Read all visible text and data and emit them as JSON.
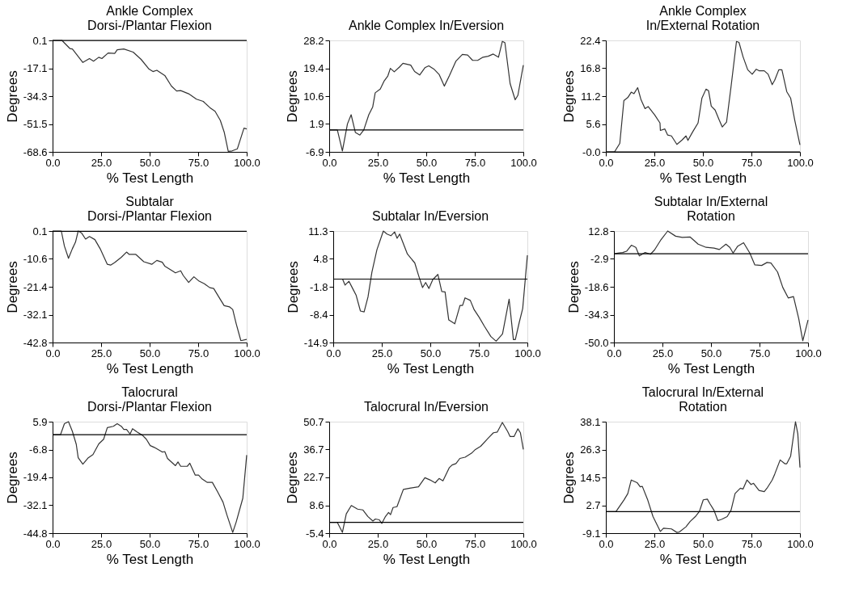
{
  "chart_data": [
    {
      "type": "line",
      "title": "Ankle Complex\nDorsi-/Plantar Flexion",
      "xlabel": "% Test Length",
      "ylabel": "Degrees",
      "xlim": [
        0,
        100
      ],
      "ylim": [
        -68.6,
        0.1
      ],
      "xticks": [
        {
          "value": 0,
          "label": "0.0"
        },
        {
          "value": 25,
          "label": "25.0"
        },
        {
          "value": 50,
          "label": "50.0"
        },
        {
          "value": 75,
          "label": "75.0"
        },
        {
          "value": 100,
          "label": "100.0"
        }
      ],
      "yticks": [
        -68.6,
        -51.5,
        -34.3,
        -17.1,
        0.1
      ],
      "grid": false,
      "ref_lines": [
        {
          "axis": "y",
          "value": 0,
          "color": "#000000"
        }
      ],
      "x": [
        0,
        4.8,
        8.9,
        10.2,
        15.6,
        19,
        21.1,
        23.8,
        25.4,
        28.6,
        32,
        33.3,
        36.7,
        41.5,
        45.6,
        49.7,
        51.7,
        53.7,
        57.8,
        61.2,
        63.9,
        66,
        70.1,
        74.1,
        77.6,
        81,
        83.7,
        86.4,
        88.4,
        90.5,
        92.5,
        95.2,
        98.6,
        100
      ],
      "series": [
        {
          "color": "#333333",
          "values": [
            0.1,
            0.1,
            -4.9,
            -5.2,
            -13.5,
            -11.1,
            -12.7,
            -10.3,
            -11.1,
            -7.7,
            -7.9,
            -5.7,
            -5.2,
            -7.1,
            -11.6,
            -17.6,
            -19.1,
            -18.3,
            -21.5,
            -28.0,
            -31.1,
            -30.8,
            -32.8,
            -36.1,
            -37.5,
            -41.3,
            -43.6,
            -49.2,
            -56.4,
            -68.3,
            -68.0,
            -66.7,
            -54,
            -54.5
          ]
        }
      ]
    },
    {
      "type": "line",
      "title": "Ankle Complex In/Eversion",
      "xlabel": "% Test Length",
      "ylabel": "Degrees",
      "xlim": [
        0,
        100
      ],
      "ylim": [
        -6.9,
        28.2
      ],
      "xticks": [
        {
          "value": 0,
          "label": "0.0"
        },
        {
          "value": 25,
          "label": "25.0"
        },
        {
          "value": 50,
          "label": "50.0"
        },
        {
          "value": 75,
          "label": "75.0"
        },
        {
          "value": 100,
          "label": "100.0"
        }
      ],
      "yticks": [
        -6.9,
        1.9,
        10.6,
        19.4,
        28.2
      ],
      "grid": false,
      "ref_lines": [
        {
          "axis": "y",
          "value": 0,
          "color": "#000000"
        }
      ],
      "x": [
        0,
        4.2,
        6.8,
        9.4,
        11.3,
        13.5,
        15.8,
        17.8,
        20.4,
        22.4,
        23.7,
        26.3,
        28.2,
        30.2,
        31.5,
        33.5,
        36.2,
        38,
        42,
        44,
        46.6,
        49.3,
        51.3,
        53.9,
        56.6,
        59.3,
        61.9,
        65.3,
        68.6,
        71.3,
        73.9,
        76.5,
        79.2,
        81.9,
        84.5,
        87.2,
        89.2,
        90.5,
        93.2,
        95.8,
        97.2,
        100
      ],
      "series": [
        {
          "color": "#333333",
          "values": [
            0.0,
            0.0,
            -6.6,
            1.9,
            4.8,
            -0.8,
            -1.6,
            0.0,
            4.8,
            7.2,
            11.7,
            12.9,
            15.3,
            17.0,
            19.4,
            18.3,
            19.8,
            21.0,
            20.4,
            18.4,
            17.3,
            19.6,
            20.2,
            19.2,
            17.5,
            13.8,
            17.1,
            21.7,
            23.8,
            23.6,
            21.9,
            21.9,
            22.9,
            23.2,
            23.9,
            22.9,
            27.9,
            27.5,
            14.6,
            9.5,
            10.9,
            20.4
          ]
        }
      ]
    },
    {
      "type": "line",
      "title": "Ankle Complex\nIn/External Rotation",
      "xlabel": "% Test Length",
      "ylabel": "Degrees",
      "xlim": [
        0,
        100
      ],
      "ylim": [
        0,
        22.4
      ],
      "xticks": [
        {
          "value": 0,
          "label": "0.0"
        },
        {
          "value": 25,
          "label": "25.0"
        },
        {
          "value": 50,
          "label": "50.0"
        },
        {
          "value": 75,
          "label": "75.0"
        },
        {
          "value": 100,
          "label": "100.0"
        }
      ],
      "yticks": [
        {
          "value": 0,
          "label": "-0.0"
        },
        5.6,
        11.2,
        16.8,
        22.4
      ],
      "grid": false,
      "ref_lines": [
        {
          "axis": "y",
          "value": 0,
          "color": "#000000"
        }
      ],
      "x": [
        0,
        4.5,
        7.2,
        9.3,
        11.3,
        13.1,
        14.5,
        16.4,
        18.1,
        20.2,
        21.8,
        25.2,
        27.9,
        28.1,
        30.4,
        31.8,
        33.8,
        36.6,
        39.3,
        41.3,
        42.3,
        44.7,
        47.5,
        49.5,
        51.6,
        52.9,
        54.3,
        56.3,
        58.4,
        60,
        62.2,
        64.5,
        67.3,
        68.6,
        70.7,
        73.1,
        75.4,
        77.5,
        78.9,
        81.6,
        83.6,
        85.7,
        87,
        89.1,
        90.7,
        93.2,
        95.2,
        97.3,
        100
      ],
      "series": [
        {
          "color": "#333333",
          "values": [
            0,
            0,
            1.7,
            10.3,
            10.9,
            12.0,
            11.7,
            12.9,
            10.5,
            8.7,
            9.1,
            7.4,
            5.8,
            4.3,
            4.6,
            3.4,
            3.2,
            1.5,
            2.4,
            3.2,
            2.3,
            4.0,
            5.8,
            10.8,
            12.6,
            12.3,
            9.2,
            8.4,
            6.4,
            5.0,
            6.0,
            13.1,
            22.2,
            22.0,
            19.1,
            16.5,
            15.6,
            16.6,
            16.3,
            16.3,
            15.6,
            13.5,
            14.4,
            16.5,
            16.5,
            12.1,
            10.8,
            6.4,
            1.4
          ]
        }
      ]
    },
    {
      "type": "line",
      "title": "Subtalar\nDorsi-/Plantar Flexion",
      "xlabel": "% Test Length",
      "ylabel": "Degrees",
      "xlim": [
        0,
        100
      ],
      "ylim": [
        -42.8,
        0.1
      ],
      "xticks": [
        {
          "value": 0,
          "label": "0.0"
        },
        {
          "value": 25,
          "label": "25.0"
        },
        {
          "value": 50,
          "label": "50.0"
        },
        {
          "value": 75,
          "label": "75.0"
        },
        {
          "value": 100,
          "label": "100.0"
        }
      ],
      "yticks": [
        -42.8,
        -32.1,
        -21.4,
        -10.6,
        0.1
      ],
      "grid": false,
      "ref_lines": [
        {
          "axis": "y",
          "value": 0,
          "color": "#000000"
        }
      ],
      "x": [
        0,
        4.5,
        6.1,
        8.2,
        10.2,
        11.8,
        13.2,
        15,
        17,
        19,
        21.8,
        24.5,
        28.2,
        29.9,
        32,
        35.4,
        38.1,
        39.5,
        42.9,
        47,
        51.1,
        53.7,
        56.5,
        57.8,
        60.5,
        63.3,
        66,
        67.3,
        70.1,
        72.8,
        75.5,
        78.2,
        81,
        83,
        86.4,
        88.4,
        91.2,
        92.8,
        94.6,
        97,
        100
      ],
      "series": [
        {
          "color": "#333333",
          "values": [
            0.1,
            0.1,
            -5.7,
            -10.4,
            -6.7,
            -4.2,
            0.1,
            -0.7,
            -3.0,
            -2.0,
            -3.2,
            -6.7,
            -12.7,
            -13.0,
            -12.0,
            -10.0,
            -8.0,
            -8.9,
            -8.9,
            -11.7,
            -12.7,
            -11.2,
            -11.9,
            -13.4,
            -14.7,
            -16.0,
            -15.2,
            -17.0,
            -19.7,
            -17.5,
            -19.2,
            -20.2,
            -21.7,
            -22.0,
            -26.2,
            -28.6,
            -29.1,
            -30.1,
            -35.6,
            -42.1,
            -41.6
          ]
        }
      ]
    },
    {
      "type": "line",
      "title": "Subtalar In/Eversion",
      "xlabel": "% Test Length",
      "ylabel": "Degrees",
      "xlim": [
        0,
        100
      ],
      "ylim": [
        -14.9,
        11.3
      ],
      "xticks": [
        {
          "value": 0,
          "label": "0.0"
        },
        {
          "value": 25,
          "label": "25.0"
        },
        {
          "value": 50,
          "label": "50.0"
        },
        {
          "value": 75,
          "label": "75.0"
        },
        {
          "value": 100,
          "label": "100.0"
        }
      ],
      "yticks": [
        -14.9,
        -8.4,
        -1.8,
        4.8,
        11.3
      ],
      "grid": false,
      "ref_lines": [
        {
          "axis": "y",
          "value": 0,
          "color": "#000000"
        }
      ],
      "x": [
        0,
        4.8,
        6.1,
        8.1,
        10.1,
        11.8,
        14,
        15.9,
        17.9,
        19.9,
        22.5,
        25.8,
        27.7,
        29.7,
        31.6,
        32.9,
        34.2,
        38.2,
        42,
        44,
        46,
        47.6,
        49.3,
        51.3,
        53.9,
        55.9,
        57.6,
        59.5,
        62.6,
        65.3,
        66.6,
        67.9,
        70.6,
        72.6,
        75.2,
        77.9,
        81.2,
        83.9,
        87.2,
        90.6,
        92.8,
        93.8,
        95.8,
        97.6,
        100
      ],
      "series": [
        {
          "color": "#333333",
          "values": [
            0,
            0,
            -1.4,
            -0.5,
            -2.3,
            -3.8,
            -7.5,
            -7.7,
            -4.2,
            1.6,
            6.9,
            11.3,
            10.6,
            10.2,
            11.1,
            9.6,
            10.6,
            5.9,
            3.8,
            0.8,
            -2.0,
            -0.8,
            -2.2,
            -0.1,
            1.1,
            -2.9,
            -3.0,
            -9.6,
            -10.5,
            -6.2,
            -6.2,
            -4.4,
            -5.0,
            -7.2,
            -9.0,
            -11.1,
            -13.5,
            -14.6,
            -12.9,
            -4.7,
            -14.2,
            -14.2,
            -10.2,
            -6.9,
            5.6
          ]
        }
      ]
    },
    {
      "type": "line",
      "title": "Subtalar In/External\nRotation",
      "xlabel": "% Test Length",
      "ylabel": "Degrees",
      "xlim": [
        0,
        100
      ],
      "ylim": [
        -50,
        12.8
      ],
      "xticks": [
        {
          "value": 0,
          "label": "0.0"
        },
        {
          "value": 25,
          "label": "25.0"
        },
        {
          "value": 50,
          "label": "50.0"
        },
        {
          "value": 75,
          "label": "75.0"
        },
        {
          "value": 100,
          "label": "100.0"
        }
      ],
      "yticks": [
        {
          "value": -50,
          "label": "-50.0"
        },
        -34.3,
        -18.6,
        -2.9,
        12.8
      ],
      "grid": false,
      "ref_lines": [
        {
          "axis": "y",
          "value": 0,
          "color": "#000000"
        }
      ],
      "x": [
        0,
        4.5,
        6.5,
        9,
        11.3,
        13.1,
        16.1,
        18.8,
        20.9,
        24.3,
        27.7,
        31.8,
        35.2,
        39.3,
        43.4,
        47.5,
        51.6,
        54.3,
        57.7,
        59.7,
        61.4,
        63.8,
        66.8,
        70,
        72.6,
        76.1,
        78.9,
        80.9,
        84.3,
        87,
        89.8,
        92.5,
        95.2,
        97.3,
        100
      ],
      "series": [
        {
          "color": "#333333",
          "values": [
            0,
            0.7,
            1.4,
            4.8,
            3.6,
            -1.2,
            0.7,
            -0.3,
            2.1,
            8.0,
            12.8,
            9.9,
            9.2,
            9.4,
            5.4,
            3.6,
            3.2,
            2.4,
            5.4,
            3.6,
            0.4,
            4.3,
            6.2,
            0.4,
            -6.3,
            -6.6,
            -4.9,
            -5.2,
            -10.3,
            -19.0,
            -24.9,
            -24.1,
            -36.5,
            -49.0,
            -37.3
          ]
        }
      ]
    },
    {
      "type": "line",
      "title": "Talocrural\nDorsi-/Plantar Flexion",
      "xlabel": "% Test Length",
      "ylabel": "Degrees",
      "xlim": [
        0,
        100
      ],
      "ylim": [
        -44.8,
        5.9
      ],
      "xticks": [
        {
          "value": 0,
          "label": "0.0"
        },
        {
          "value": 25,
          "label": "25.0"
        },
        {
          "value": 50,
          "label": "50.0"
        },
        {
          "value": 75,
          "label": "75.0"
        },
        {
          "value": 100,
          "label": "100.0"
        }
      ],
      "yticks": [
        -44.8,
        -32.1,
        -19.4,
        -6.8,
        5.9
      ],
      "grid": false,
      "ref_lines": [
        {
          "axis": "y",
          "value": 0,
          "color": "#000000"
        }
      ],
      "x": [
        0,
        4.1,
        6.1,
        8.2,
        10.2,
        12.2,
        13.2,
        15.6,
        18.4,
        20.8,
        23.8,
        26.3,
        28.2,
        31.3,
        33.3,
        35.4,
        36.7,
        38.1,
        39.9,
        41.2,
        43.5,
        46.3,
        48.3,
        50.3,
        52.4,
        56.5,
        57.8,
        59.2,
        63.3,
        64.6,
        66,
        69.4,
        70.7,
        73.5,
        75.2,
        77.1,
        79.6,
        82.3,
        85,
        87.8,
        89.8,
        92.8,
        94.6,
        98,
        100
      ],
      "series": [
        {
          "color": "#333333",
          "values": [
            0,
            0,
            5.0,
            5.9,
            1.5,
            -4.4,
            -10.5,
            -13.4,
            -10.5,
            -9.1,
            -4.2,
            -2.1,
            3.2,
            3.8,
            5.0,
            3.8,
            2.4,
            2.4,
            0.3,
            2.7,
            1.2,
            -0.3,
            -2.1,
            -5.0,
            -5.8,
            -7.9,
            -7.7,
            -10.8,
            -14.1,
            -12.4,
            -14.4,
            -14.4,
            -13.0,
            -18.4,
            -18.4,
            -20.2,
            -21.7,
            -21.7,
            -26.0,
            -30.7,
            -36.5,
            -44.5,
            -39.7,
            -28.9,
            -9.3
          ]
        }
      ]
    },
    {
      "type": "line",
      "title": "Talocrural In/Eversion",
      "xlabel": "% Test Length",
      "ylabel": "Degrees",
      "xlim": [
        0,
        100
      ],
      "ylim": [
        -5.4,
        50.7
      ],
      "xticks": [
        {
          "value": 0,
          "label": "0.0"
        },
        {
          "value": 25,
          "label": "25.0"
        },
        {
          "value": 50,
          "label": "50.0"
        },
        {
          "value": 75,
          "label": "75.0"
        },
        {
          "value": 100,
          "label": "100.0"
        }
      ],
      "yticks": [
        -5.4,
        8.6,
        22.7,
        36.7,
        50.7
      ],
      "grid": false,
      "ref_lines": [
        {
          "axis": "y",
          "value": 0,
          "color": "#000000"
        }
      ],
      "x": [
        0,
        4.2,
        6.8,
        8.8,
        11.4,
        14.6,
        17.3,
        19.9,
        22.5,
        23.8,
        25.8,
        27.1,
        29,
        30.6,
        31.6,
        32.9,
        34.9,
        38.2,
        42,
        46,
        49.3,
        51.9,
        54.6,
        56.6,
        58.6,
        61.9,
        63.3,
        65.3,
        67.3,
        70,
        73.3,
        75.3,
        78,
        82,
        84.6,
        86.6,
        89.2,
        91.9,
        93.2,
        95.2,
        97.2,
        98.5,
        100
      ],
      "series": [
        {
          "color": "#333333",
          "values": [
            0,
            0,
            -5.0,
            4.3,
            8.5,
            6.7,
            6.3,
            3.0,
            0.7,
            1.7,
            1.3,
            -0.5,
            3.0,
            5.0,
            3.9,
            7.5,
            7.9,
            16.6,
            17.3,
            17.9,
            22.5,
            21.4,
            19.9,
            22.1,
            20.9,
            27.6,
            28.9,
            29.6,
            32.2,
            32.8,
            34.8,
            36.7,
            38.3,
            42.5,
            45.1,
            45.5,
            50.3,
            45.8,
            43.2,
            43.2,
            47.1,
            45.1,
            36.7
          ]
        }
      ]
    },
    {
      "type": "line",
      "title": "Talocrural In/External\nRotation",
      "xlabel": "% Test Length",
      "ylabel": "Degrees",
      "xlim": [
        0,
        100
      ],
      "ylim": [
        -9.1,
        38.1
      ],
      "xticks": [
        {
          "value": 0,
          "label": "0.0"
        },
        {
          "value": 25,
          "label": "25.0"
        },
        {
          "value": 50,
          "label": "50.0"
        },
        {
          "value": 75,
          "label": "75.0"
        },
        {
          "value": 100,
          "label": "100.0"
        }
      ],
      "yticks": [
        -9.1,
        2.7,
        14.5,
        26.3,
        38.1
      ],
      "grid": false,
      "ref_lines": [
        {
          "axis": "y",
          "value": 0,
          "color": "#000000"
        }
      ],
      "x": [
        0,
        5.2,
        9.3,
        11.3,
        13.1,
        16.1,
        17.7,
        18.8,
        21.6,
        24.3,
        28.1,
        29.7,
        33.8,
        36.6,
        37.9,
        41.3,
        43.4,
        46.1,
        48.2,
        50.2,
        52.3,
        53.6,
        55.7,
        57.7,
        59.8,
        62.5,
        64.5,
        66.6,
        69.3,
        70.7,
        72.7,
        74.8,
        76.1,
        78.9,
        81.6,
        83,
        85.7,
        87,
        89.8,
        92.2,
        93.2,
        95.2,
        97.7,
        98.9,
        100
      ],
      "series": [
        {
          "color": "#333333",
          "values": [
            0,
            0,
            4.9,
            7.6,
            13.4,
            12.3,
            10.5,
            10.7,
            4.9,
            -2.1,
            -8.4,
            -7.0,
            -7.3,
            -8.8,
            -8.6,
            -6.4,
            -4.2,
            -2.1,
            0.1,
            5.0,
            5.3,
            3.4,
            0.6,
            -3.8,
            -3.2,
            -2.1,
            0.6,
            7.7,
            9.9,
            9.6,
            13.4,
            11.5,
            12.0,
            9.0,
            8.5,
            9.9,
            13.4,
            15.9,
            21.9,
            20.3,
            20.3,
            23.5,
            38.1,
            32.9,
            18.7
          ]
        }
      ]
    }
  ]
}
